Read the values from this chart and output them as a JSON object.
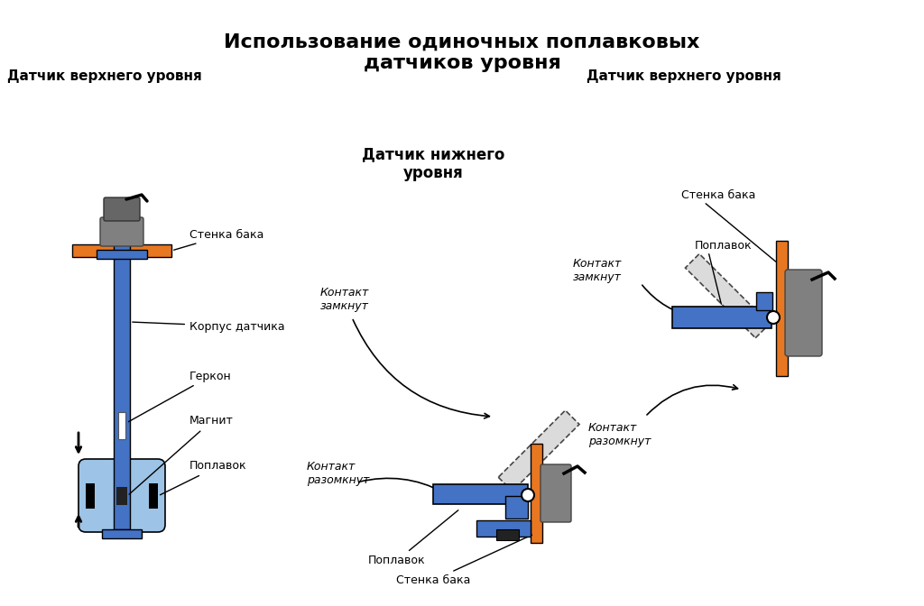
{
  "title": "Использование одиночных поплавковых\nдатчиков уровня",
  "label_top_left": "Датчик верхнего уровня",
  "label_top_right": "Датчик верхнего уровня",
  "label_center": "Датчик нижнего\nуровня",
  "bg_color": "#ffffff",
  "blue_color": "#4472C4",
  "blue_light": "#9DC3E6",
  "orange_color": "#E87722",
  "gray_color": "#808080",
  "gray_light": "#CCCCCC",
  "dark_blue": "#2F5597"
}
